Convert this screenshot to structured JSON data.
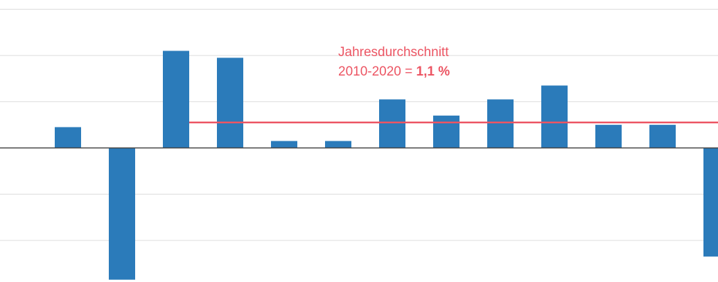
{
  "chart_data": {
    "type": "bar",
    "values": [
      0.9,
      -5.7,
      4.2,
      3.9,
      0.3,
      0.3,
      2.1,
      1.4,
      2.1,
      2.7,
      1.0,
      1.0,
      -4.7
    ],
    "color": "#2b7bba",
    "ylim": [
      -5.8,
      6.4
    ],
    "yticks": [
      -4,
      -2,
      0,
      2,
      4,
      6
    ],
    "grid": true,
    "average": {
      "value": 1.1,
      "label": "1,1 %",
      "color": "#ec5563"
    },
    "annotation": [
      "Jahresdurchschnitt",
      "2010-2020 = "
    ]
  }
}
